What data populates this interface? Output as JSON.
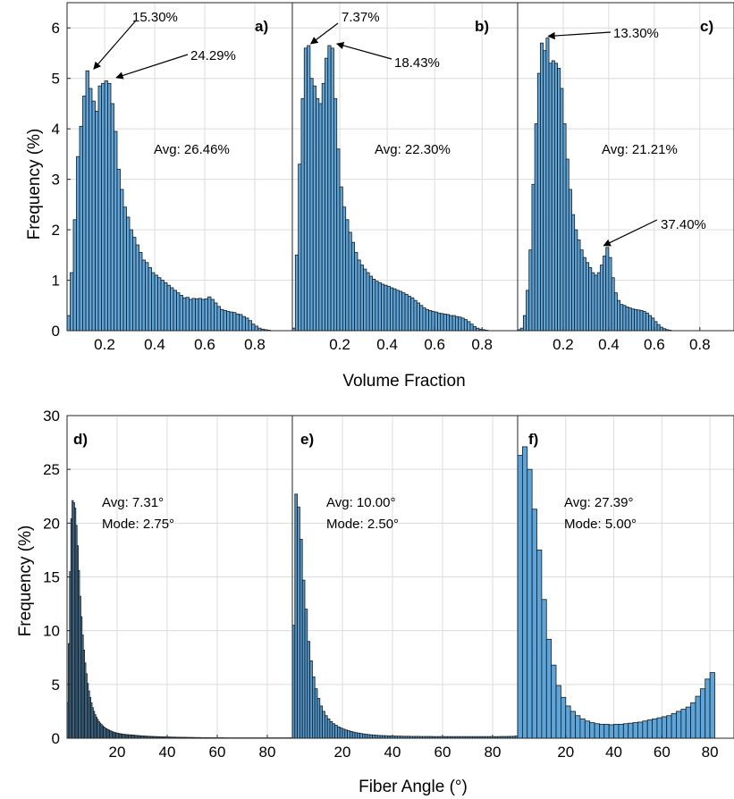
{
  "figure": {
    "top_xlabel": "Volume Fraction",
    "top_ylabel": "Frequency (%)",
    "bottom_xlabel": "Fiber Angle (°)",
    "bottom_ylabel": "Frequency (%)"
  },
  "chart_data": [
    {
      "type": "bar",
      "panel_label": "a)",
      "xlabel": "",
      "ylabel": "Frequency (%)",
      "xlim": [
        0.05,
        0.95
      ],
      "ylim": [
        0,
        6.5
      ],
      "xticks": [
        0.2,
        0.4,
        0.6,
        0.8
      ],
      "yticks": [
        0,
        1,
        2,
        3,
        4,
        5,
        6
      ],
      "grid": true,
      "bin_start": 0.05,
      "bin_width": 0.0125,
      "bar_color": "#5aa5dc",
      "values": [
        0.3,
        1.15,
        2.2,
        3.45,
        4.05,
        4.65,
        5.15,
        4.8,
        4.55,
        4.35,
        4.85,
        4.9,
        4.95,
        4.9,
        4.5,
        3.95,
        3.2,
        2.8,
        2.45,
        2.25,
        2.0,
        1.85,
        1.7,
        1.55,
        1.4,
        1.35,
        1.25,
        1.15,
        1.1,
        1.05,
        1.0,
        0.95,
        0.9,
        0.85,
        0.8,
        0.75,
        0.7,
        0.65,
        0.66,
        0.62,
        0.64,
        0.63,
        0.64,
        0.62,
        0.63,
        0.67,
        0.62,
        0.55,
        0.48,
        0.42,
        0.4,
        0.38,
        0.37,
        0.36,
        0.33,
        0.32,
        0.28,
        0.25,
        0.2,
        0.13,
        0.09,
        0.05,
        0.03,
        0.02,
        0.01
      ],
      "annotations": [
        {
          "text": "15.30%",
          "x": 0.153,
          "y": 5.15
        },
        {
          "text": "24.29%",
          "x": 0.243,
          "y": 4.98
        },
        {
          "text": "Avg: 26.46%"
        }
      ]
    },
    {
      "type": "bar",
      "panel_label": "b)",
      "xlabel": "",
      "ylabel": "",
      "xlim": [
        0,
        0.95
      ],
      "ylim": [
        0,
        6.5
      ],
      "xticks": [
        0.2,
        0.4,
        0.6,
        0.8
      ],
      "yticks": [
        0,
        1,
        2,
        3,
        4,
        5,
        6
      ],
      "grid": true,
      "bin_start": 0.0,
      "bin_width": 0.0125,
      "bar_color": "#5aa5dc",
      "values": [
        0.05,
        1.5,
        3.3,
        4.6,
        5.6,
        5.65,
        5.0,
        4.85,
        4.6,
        4.5,
        4.9,
        5.4,
        5.65,
        5.6,
        4.6,
        3.6,
        2.85,
        2.45,
        2.2,
        1.95,
        1.75,
        1.55,
        1.4,
        1.3,
        1.22,
        1.15,
        1.08,
        1.02,
        0.98,
        0.95,
        0.92,
        0.9,
        0.88,
        0.85,
        0.83,
        0.8,
        0.78,
        0.75,
        0.72,
        0.68,
        0.65,
        0.6,
        0.55,
        0.5,
        0.45,
        0.42,
        0.4,
        0.38,
        0.37,
        0.35,
        0.34,
        0.33,
        0.32,
        0.3,
        0.3,
        0.28,
        0.27,
        0.25,
        0.22,
        0.18,
        0.13,
        0.08,
        0.05,
        0.03,
        0.02,
        0.01
      ],
      "annotations": [
        {
          "text": "7.37%",
          "x": 0.074,
          "y": 5.65
        },
        {
          "text": "18.43%",
          "x": 0.184,
          "y": 5.65
        },
        {
          "text": "Avg: 22.30%"
        }
      ]
    },
    {
      "type": "bar",
      "panel_label": "c)",
      "xlabel": "",
      "ylabel": "",
      "xlim": [
        0,
        0.95
      ],
      "ylim": [
        0,
        6.5
      ],
      "xticks": [
        0.2,
        0.4,
        0.6,
        0.8
      ],
      "yticks": [
        0,
        1,
        2,
        3,
        4,
        5,
        6
      ],
      "grid": true,
      "bin_start": 0.0,
      "bin_width": 0.0125,
      "bar_color": "#5aa5dc",
      "values": [
        0.02,
        0.05,
        0.3,
        0.8,
        1.6,
        2.9,
        4.1,
        5.1,
        5.7,
        5.55,
        5.8,
        5.3,
        5.35,
        5.3,
        5.2,
        4.8,
        4.1,
        3.4,
        2.8,
        2.3,
        2.0,
        1.8,
        1.6,
        1.45,
        1.35,
        1.25,
        1.15,
        1.1,
        1.15,
        1.3,
        1.48,
        1.65,
        1.45,
        1.05,
        0.75,
        0.6,
        0.52,
        0.5,
        0.47,
        0.45,
        0.43,
        0.42,
        0.41,
        0.4,
        0.38,
        0.35,
        0.3,
        0.25,
        0.18,
        0.12,
        0.07,
        0.04,
        0.02,
        0.01
      ],
      "annotations": [
        {
          "text": "13.30%",
          "x": 0.13,
          "y": 5.8
        },
        {
          "text": "37.40%",
          "x": 0.374,
          "y": 1.65
        },
        {
          "text": "Avg: 21.21%"
        }
      ]
    },
    {
      "type": "bar",
      "panel_label": "d)",
      "xlabel": "",
      "ylabel": "Frequency (%)",
      "xlim": [
        0,
        90
      ],
      "ylim": [
        0,
        30
      ],
      "xticks": [
        20,
        40,
        60,
        80
      ],
      "yticks": [
        0,
        5,
        10,
        15,
        20,
        25,
        30
      ],
      "grid": true,
      "bin_start": 0,
      "bin_width": 0.5,
      "bar_color": "#4e98cf",
      "values": [
        3.3,
        8.8,
        15.5,
        20.4,
        22.1,
        21.9,
        21.4,
        19.8,
        17.9,
        15.6,
        13.2,
        11.3,
        9.6,
        8.2,
        7.0,
        6.0,
        5.1,
        4.4,
        3.8,
        3.3,
        2.85,
        2.5,
        2.2,
        1.95,
        1.75,
        1.55,
        1.4,
        1.28,
        1.15,
        1.05,
        0.95,
        0.88,
        0.82,
        0.76,
        0.7,
        0.65,
        0.6,
        0.56,
        0.52,
        0.49,
        0.46,
        0.44,
        0.42,
        0.4,
        0.38,
        0.37,
        0.35,
        0.34,
        0.33,
        0.32,
        0.31,
        0.3,
        0.29,
        0.28,
        0.27,
        0.26,
        0.25,
        0.24,
        0.23,
        0.22,
        0.21,
        0.2,
        0.2,
        0.19,
        0.18,
        0.18,
        0.17,
        0.17,
        0.16,
        0.16,
        0.15,
        0.15,
        0.14,
        0.14,
        0.13,
        0.13,
        0.13,
        0.12,
        0.12,
        0.12,
        0.11,
        0.11,
        0.11,
        0.1,
        0.1,
        0.1,
        0.1,
        0.09,
        0.09,
        0.09,
        0.09,
        0.08,
        0.08,
        0.08,
        0.08,
        0.08,
        0.07,
        0.07,
        0.07,
        0.07,
        0.07,
        0.06,
        0.06,
        0.06,
        0.06,
        0.06,
        0.06,
        0.05,
        0.05,
        0.05,
        0.05,
        0.05,
        0.05,
        0.05,
        0.05,
        0.04,
        0.04,
        0.04,
        0.04,
        0.04,
        0.04,
        0.04,
        0.04,
        0.04,
        0.04,
        0.04,
        0.03,
        0.03,
        0.03,
        0.03,
        0.03,
        0.03,
        0.03,
        0.03,
        0.03,
        0.03,
        0.03,
        0.03,
        0.03,
        0.03,
        0.03,
        0.03,
        0.03,
        0.03,
        0.03,
        0.03,
        0.03,
        0.03,
        0.03,
        0.03,
        0.03,
        0.03,
        0.03,
        0.03,
        0.03,
        0.03,
        0.03,
        0.03,
        0.03,
        0.03,
        0.03,
        0.03,
        0.03,
        0.03,
        0.03,
        0.03,
        0.03,
        0.03,
        0.03,
        0.03,
        0.03,
        0.03,
        0.03,
        0.03,
        0.03,
        0.03,
        0.03,
        0.03,
        0.03,
        0.03,
        0.03,
        0.03,
        0.03,
        0.03
      ],
      "annotations": [
        {
          "text": "Avg: 7.31°"
        },
        {
          "text": "Mode: 2.75°"
        }
      ]
    },
    {
      "type": "bar",
      "panel_label": "e)",
      "xlabel": "",
      "ylabel": "",
      "xlim": [
        0,
        90
      ],
      "ylim": [
        0,
        30
      ],
      "xticks": [
        20,
        40,
        60,
        80
      ],
      "yticks": [
        0,
        5,
        10,
        15,
        20,
        25,
        30
      ],
      "grid": true,
      "bin_start": 0,
      "bin_width": 1,
      "bar_color": "#4e98cf",
      "values": [
        10.5,
        22.7,
        21.5,
        18.5,
        14.7,
        12.0,
        9.0,
        7.2,
        5.7,
        4.6,
        3.7,
        3.0,
        2.5,
        2.1,
        1.8,
        1.55,
        1.35,
        1.2,
        1.05,
        0.95,
        0.85,
        0.77,
        0.7,
        0.63,
        0.57,
        0.52,
        0.48,
        0.44,
        0.4,
        0.37,
        0.34,
        0.32,
        0.3,
        0.28,
        0.26,
        0.25,
        0.24,
        0.23,
        0.22,
        0.21,
        0.2,
        0.2,
        0.19,
        0.19,
        0.18,
        0.18,
        0.18,
        0.17,
        0.17,
        0.17,
        0.17,
        0.16,
        0.16,
        0.16,
        0.16,
        0.16,
        0.15,
        0.15,
        0.15,
        0.15,
        0.15,
        0.15,
        0.15,
        0.15,
        0.15,
        0.15,
        0.15,
        0.15,
        0.15,
        0.15,
        0.15,
        0.15,
        0.15,
        0.15,
        0.15,
        0.15,
        0.15,
        0.15,
        0.15,
        0.15,
        0.15,
        0.15,
        0.15,
        0.16,
        0.16,
        0.16,
        0.17,
        0.17,
        0.18,
        0.2
      ],
      "annotations": [
        {
          "text": "Avg: 10.00°"
        },
        {
          "text": "Mode: 2.50°"
        }
      ]
    },
    {
      "type": "bar",
      "panel_label": "f)",
      "xlabel": "",
      "ylabel": "",
      "xlim": [
        0,
        90
      ],
      "ylim": [
        0,
        30
      ],
      "xticks": [
        20,
        40,
        60,
        80
      ],
      "yticks": [
        0,
        5,
        10,
        15,
        20,
        25,
        30
      ],
      "grid": true,
      "bin_start": 0,
      "bin_width": 2,
      "bar_color": "#5aa5dc",
      "values": [
        26.3,
        27.1,
        25.0,
        21.3,
        17.5,
        12.9,
        9.2,
        6.8,
        4.9,
        3.8,
        3.0,
        2.5,
        2.1,
        1.8,
        1.6,
        1.45,
        1.35,
        1.3,
        1.3,
        1.25,
        1.3,
        1.3,
        1.35,
        1.4,
        1.45,
        1.5,
        1.6,
        1.7,
        1.8,
        1.9,
        2.0,
        2.1,
        2.3,
        2.5,
        2.7,
        2.9,
        3.3,
        3.9,
        4.6,
        5.5,
        6.1
      ],
      "annotations": [
        {
          "text": "Avg: 27.39°"
        },
        {
          "text": "Mode: 5.00°"
        }
      ]
    }
  ]
}
